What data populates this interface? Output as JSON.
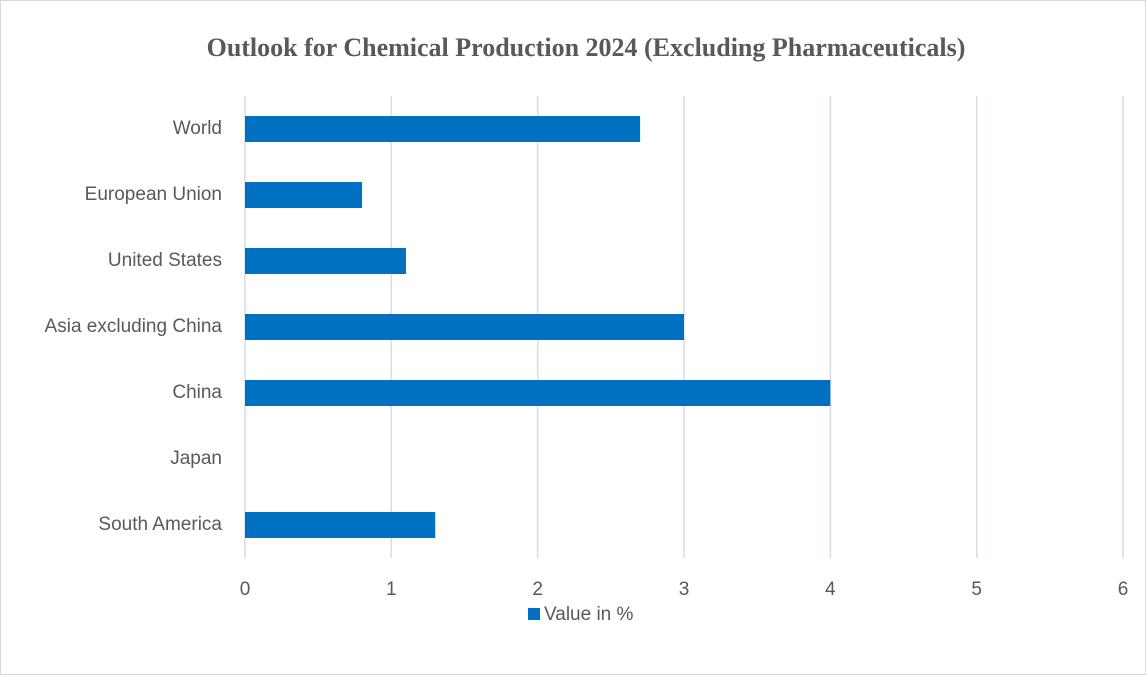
{
  "chart_data": {
    "type": "bar",
    "orientation": "horizontal",
    "title": "Outlook for Chemical Production 2024 (Excluding Pharmaceuticals)",
    "categories": [
      "World",
      "European Union",
      "United States",
      "Asia excluding China",
      "China",
      "Japan",
      "South America"
    ],
    "series": [
      {
        "name": "Value in %",
        "color": "#0070c0",
        "values": [
          2.7,
          0.8,
          1.1,
          3.0,
          4.0,
          0,
          1.3
        ]
      }
    ],
    "xlim": [
      0,
      6
    ],
    "xticks": [
      0,
      1,
      2,
      3,
      4,
      5,
      6
    ],
    "grid": true,
    "legend": "bottom"
  }
}
